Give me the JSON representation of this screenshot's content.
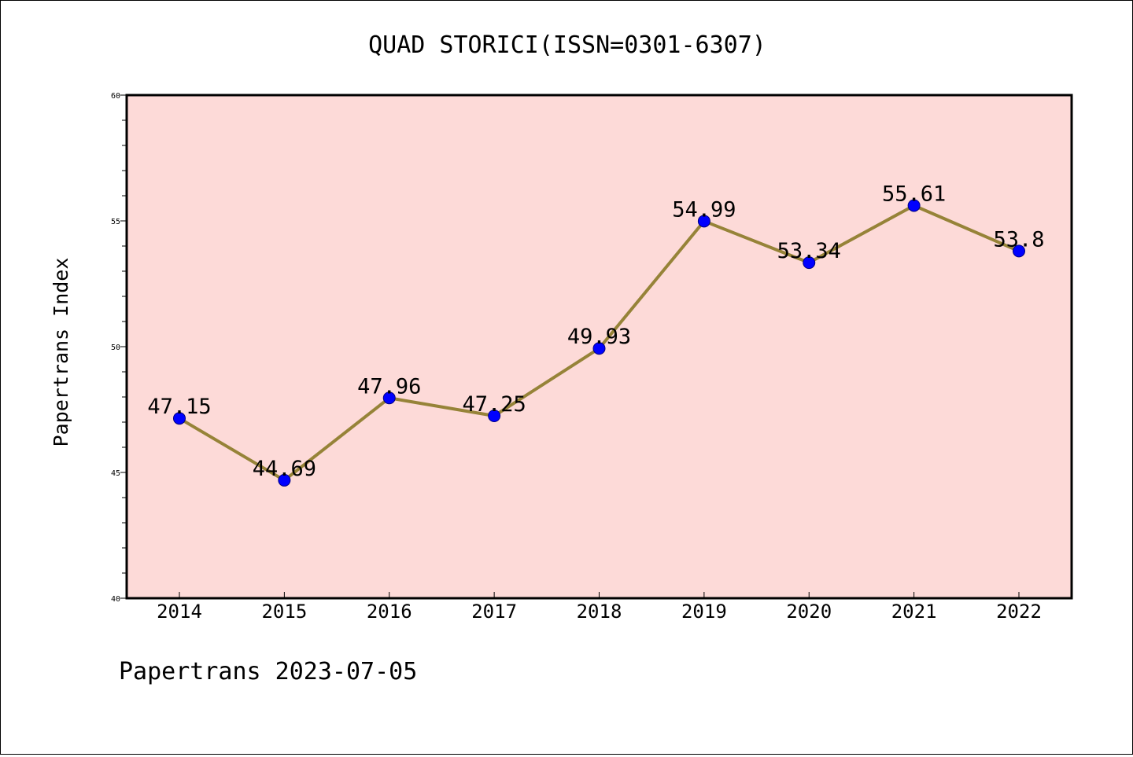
{
  "chart_data": {
    "type": "line",
    "title": "QUAD STORICI(ISSN=0301-6307)",
    "ylabel": "Papertrans Index",
    "xlabel": "",
    "footer": "Papertrans 2023-07-05",
    "categories": [
      "2014",
      "2015",
      "2016",
      "2017",
      "2018",
      "2019",
      "2020",
      "2021",
      "2022"
    ],
    "series": [
      {
        "values": [
          47.15,
          44.69,
          47.96,
          47.25,
          49.93,
          54.99,
          53.34,
          55.61,
          53.8
        ],
        "labels": [
          "47.15",
          "44.69",
          "47.96",
          "47.25",
          "49.93",
          "54.99",
          "53.34",
          "55.61",
          "53.8"
        ]
      }
    ],
    "ylim": [
      40,
      60
    ],
    "yticks": [
      "40",
      "45",
      "50",
      "55",
      "60"
    ],
    "grid": false,
    "legend": "none",
    "colors": {
      "plot_background": "#fddad8",
      "line": "#968338",
      "marker": "#0000ff",
      "axis": "#000000"
    }
  }
}
